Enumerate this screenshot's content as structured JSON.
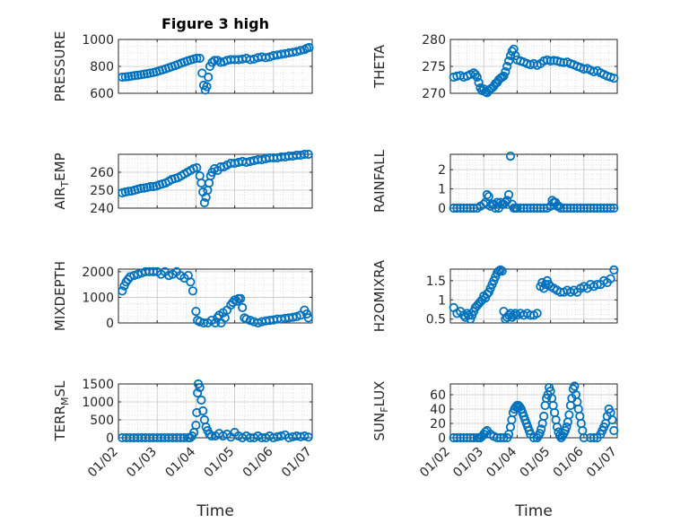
{
  "figure": {
    "title": "Figure 3 high",
    "marker_color": "#0072BD"
  },
  "chart_data": [
    {
      "type": "scatter",
      "title": "Figure 3 high",
      "ylabel": "PRESSURE",
      "xlabel": "",
      "xlim": [
        0,
        5
      ],
      "ylim": [
        600,
        1000
      ],
      "yticks": [
        600,
        800,
        1000
      ],
      "x": [
        0.1,
        0.18,
        0.26,
        0.34,
        0.42,
        0.5,
        0.58,
        0.66,
        0.74,
        0.82,
        0.9,
        0.98,
        1.06,
        1.14,
        1.22,
        1.3,
        1.38,
        1.46,
        1.54,
        1.62,
        1.7,
        1.78,
        1.86,
        1.94,
        2.02,
        2.1,
        2.16,
        2.2,
        2.24,
        2.28,
        2.32,
        2.36,
        2.42,
        2.48,
        2.56,
        2.64,
        2.72,
        2.8,
        2.9,
        3.0,
        3.1,
        3.2,
        3.3,
        3.4,
        3.5,
        3.6,
        3.7,
        3.8,
        3.9,
        4.0,
        4.1,
        4.2,
        4.3,
        4.4,
        4.5,
        4.6,
        4.7,
        4.8,
        4.86,
        4.92
      ],
      "values": [
        720,
        722,
        724,
        728,
        732,
        735,
        738,
        742,
        746,
        750,
        755,
        760,
        768,
        775,
        782,
        790,
        798,
        806,
        815,
        824,
        832,
        840,
        848,
        855,
        860,
        860,
        750,
        660,
        625,
        650,
        720,
        800,
        830,
        845,
        845,
        830,
        835,
        845,
        850,
        850,
        850,
        855,
        860,
        850,
        855,
        865,
        870,
        865,
        870,
        880,
        885,
        890,
        895,
        900,
        905,
        910,
        918,
        925,
        935,
        940
      ]
    },
    {
      "type": "scatter",
      "ylabel": "THETA",
      "xlabel": "",
      "xlim": [
        0,
        5
      ],
      "ylim": [
        270,
        280
      ],
      "yticks": [
        270,
        275,
        280
      ],
      "x": [
        0.1,
        0.2,
        0.3,
        0.4,
        0.5,
        0.6,
        0.7,
        0.75,
        0.8,
        0.85,
        0.9,
        0.95,
        1.0,
        1.05,
        1.1,
        1.15,
        1.2,
        1.25,
        1.3,
        1.35,
        1.4,
        1.45,
        1.5,
        1.55,
        1.6,
        1.65,
        1.7,
        1.75,
        1.8,
        1.85,
        1.9,
        1.95,
        2.0,
        2.1,
        2.2,
        2.3,
        2.4,
        2.5,
        2.6,
        2.7,
        2.8,
        2.9,
        3.0,
        3.1,
        3.2,
        3.3,
        3.4,
        3.5,
        3.6,
        3.7,
        3.8,
        3.9,
        4.0,
        4.1,
        4.2,
        4.3,
        4.4,
        4.5,
        4.6,
        4.7,
        4.8,
        4.9
      ],
      "values": [
        273.0,
        273.2,
        273.3,
        273.0,
        273.2,
        273.5,
        273.8,
        273.5,
        273.0,
        272.0,
        271.0,
        270.5,
        270.8,
        270.3,
        270.1,
        270.5,
        270.8,
        271.0,
        271.3,
        271.8,
        272.0,
        272.5,
        272.8,
        273.0,
        273.2,
        274.0,
        275.0,
        276.0,
        277.0,
        277.8,
        278.2,
        277.0,
        276.2,
        276.0,
        275.8,
        275.5,
        275.3,
        275.5,
        275.2,
        275.5,
        276.0,
        276.2,
        276.0,
        276.1,
        276.0,
        275.8,
        275.7,
        275.8,
        275.5,
        275.3,
        275.0,
        274.8,
        274.5,
        274.6,
        274.3,
        274.0,
        274.2,
        273.8,
        273.5,
        273.2,
        273.0,
        272.8
      ]
    },
    {
      "type": "scatter",
      "ylabel": "AIR_TEMP",
      "xlabel": "",
      "xlim": [
        0,
        5
      ],
      "ylim": [
        240,
        270
      ],
      "yticks": [
        240,
        250,
        260
      ],
      "x": [
        0.1,
        0.18,
        0.26,
        0.34,
        0.42,
        0.5,
        0.58,
        0.66,
        0.74,
        0.82,
        0.9,
        0.98,
        1.06,
        1.14,
        1.22,
        1.3,
        1.38,
        1.46,
        1.54,
        1.62,
        1.7,
        1.78,
        1.86,
        1.94,
        2.02,
        2.1,
        2.14,
        2.18,
        2.22,
        2.26,
        2.3,
        2.34,
        2.38,
        2.42,
        2.48,
        2.56,
        2.64,
        2.72,
        2.8,
        2.9,
        3.0,
        3.1,
        3.2,
        3.3,
        3.4,
        3.5,
        3.6,
        3.7,
        3.8,
        3.9,
        4.0,
        4.1,
        4.2,
        4.3,
        4.4,
        4.5,
        4.6,
        4.7,
        4.8,
        4.9
      ],
      "values": [
        248.5,
        249,
        249.3,
        249.5,
        250,
        250.5,
        251,
        251.2,
        251.5,
        252,
        252,
        252.3,
        253,
        253.5,
        254,
        255,
        256,
        256.5,
        257,
        258,
        259,
        260,
        261,
        262,
        262.5,
        258,
        254,
        249,
        243,
        246,
        250,
        254,
        258,
        260,
        262,
        261,
        263,
        263,
        264,
        265,
        265,
        265.5,
        266,
        265.5,
        266,
        266.5,
        267,
        267,
        267.5,
        268,
        268,
        268,
        268.5,
        268.5,
        269,
        269,
        269.5,
        269.5,
        270,
        270
      ]
    },
    {
      "type": "scatter",
      "ylabel": "RAINFALL",
      "xlabel": "",
      "xlim": [
        0,
        5
      ],
      "ylim": [
        0,
        2.8
      ],
      "yticks": [
        0,
        1,
        2
      ],
      "x": [
        0.1,
        0.2,
        0.3,
        0.4,
        0.5,
        0.6,
        0.7,
        0.8,
        0.9,
        1.0,
        1.05,
        1.1,
        1.15,
        1.2,
        1.25,
        1.3,
        1.35,
        1.4,
        1.45,
        1.5,
        1.55,
        1.6,
        1.65,
        1.7,
        1.75,
        1.8,
        1.85,
        1.9,
        1.95,
        2.0,
        2.1,
        2.2,
        2.3,
        2.4,
        2.5,
        2.6,
        2.7,
        2.8,
        2.9,
        3.0,
        3.05,
        3.1,
        3.15,
        3.2,
        3.25,
        3.3,
        3.4,
        3.5,
        3.6,
        3.7,
        3.8,
        3.9,
        4.0,
        4.1,
        4.2,
        4.3,
        4.4,
        4.5,
        4.6,
        4.7,
        4.8,
        4.9
      ],
      "values": [
        0,
        0,
        0,
        0,
        0,
        0,
        0,
        0,
        0.1,
        0.2,
        0.3,
        0.7,
        0.6,
        0.1,
        0.2,
        0.2,
        0,
        0.3,
        0,
        0.3,
        0.2,
        0.2,
        0.3,
        0.4,
        0.7,
        2.7,
        0.2,
        0,
        0,
        0,
        0,
        0,
        0,
        0,
        0,
        0,
        0,
        0,
        0,
        0.1,
        0.4,
        0.3,
        0.3,
        0.1,
        0.1,
        0,
        0,
        0,
        0,
        0,
        0,
        0,
        0,
        0,
        0,
        0,
        0,
        0,
        0,
        0,
        0,
        0
      ]
    },
    {
      "type": "scatter",
      "ylabel": "MIXDEPTH",
      "xlabel": "",
      "xlim": [
        0,
        5
      ],
      "ylim": [
        0,
        2100
      ],
      "yticks": [
        0,
        1000,
        2000
      ],
      "x": [
        0.1,
        0.15,
        0.2,
        0.25,
        0.3,
        0.4,
        0.5,
        0.6,
        0.7,
        0.8,
        0.9,
        1.0,
        1.1,
        1.2,
        1.3,
        1.4,
        1.5,
        1.6,
        1.7,
        1.8,
        1.86,
        1.92,
        2.0,
        2.04,
        2.1,
        2.2,
        2.3,
        2.4,
        2.5,
        2.55,
        2.6,
        2.65,
        2.7,
        2.75,
        2.8,
        2.9,
        2.95,
        3.0,
        3.05,
        3.1,
        3.15,
        3.2,
        3.25,
        3.3,
        3.4,
        3.5,
        3.6,
        3.7,
        3.8,
        3.9,
        4.0,
        4.1,
        4.2,
        4.3,
        4.4,
        4.5,
        4.6,
        4.7,
        4.8,
        4.86,
        4.9
      ],
      "values": [
        1250,
        1450,
        1600,
        1700,
        1800,
        1850,
        1900,
        1950,
        2000,
        2000,
        2000,
        2000,
        1900,
        2000,
        1850,
        1900,
        2000,
        1850,
        1750,
        1850,
        1600,
        1250,
        450,
        100,
        50,
        0,
        0,
        100,
        0,
        200,
        300,
        0,
        400,
        200,
        500,
        700,
        800,
        900,
        850,
        950,
        950,
        600,
        200,
        150,
        100,
        50,
        0,
        50,
        80,
        100,
        120,
        150,
        150,
        180,
        200,
        220,
        250,
        300,
        500,
        350,
        200
      ]
    },
    {
      "type": "scatter",
      "ylabel": "H2OMIXRA",
      "xlabel": "",
      "xlim": [
        0,
        5
      ],
      "ylim": [
        0.4,
        1.8
      ],
      "yticks": [
        0.5,
        1,
        1.5
      ],
      "x": [
        0.1,
        0.2,
        0.3,
        0.4,
        0.45,
        0.5,
        0.55,
        0.6,
        0.65,
        0.7,
        0.75,
        0.8,
        0.85,
        0.9,
        0.95,
        1.0,
        1.05,
        1.1,
        1.15,
        1.2,
        1.25,
        1.3,
        1.35,
        1.4,
        1.45,
        1.5,
        1.55,
        1.6,
        1.65,
        1.7,
        1.75,
        1.8,
        1.85,
        1.9,
        1.95,
        2.0,
        2.1,
        2.2,
        2.3,
        2.4,
        2.5,
        2.6,
        2.7,
        2.75,
        2.8,
        2.85,
        2.9,
        2.95,
        3.0,
        3.1,
        3.2,
        3.3,
        3.4,
        3.5,
        3.6,
        3.7,
        3.8,
        3.9,
        4.0,
        4.1,
        4.2,
        4.3,
        4.4,
        4.5,
        4.6,
        4.7,
        4.8,
        4.9
      ],
      "values": [
        0.8,
        0.65,
        0.7,
        0.6,
        0.55,
        0.65,
        0.6,
        0.5,
        0.6,
        0.7,
        0.8,
        0.85,
        0.9,
        0.95,
        1.0,
        1.1,
        1.05,
        1.15,
        1.2,
        1.3,
        1.4,
        1.5,
        1.6,
        1.7,
        1.75,
        1.78,
        1.75,
        0.7,
        0.5,
        0.55,
        0.6,
        0.65,
        0.55,
        0.6,
        0.65,
        0.6,
        0.65,
        0.6,
        0.65,
        0.6,
        0.6,
        0.65,
        1.35,
        1.45,
        1.3,
        1.4,
        1.5,
        1.4,
        1.35,
        1.3,
        1.25,
        1.2,
        1.2,
        1.25,
        1.2,
        1.25,
        1.2,
        1.3,
        1.35,
        1.3,
        1.4,
        1.35,
        1.4,
        1.4,
        1.5,
        1.45,
        1.55,
        1.78
      ]
    },
    {
      "type": "scatter",
      "ylabel": "TERR_MSL",
      "xlabel": "Time",
      "xlim": [
        0,
        5
      ],
      "ylim": [
        0,
        1500
      ],
      "yticks": [
        0,
        500,
        1000,
        1500
      ],
      "xticklabels": [
        "01/02",
        "01/03",
        "01/04",
        "01/05",
        "01/06",
        "01/07"
      ],
      "x": [
        0.1,
        0.2,
        0.3,
        0.4,
        0.5,
        0.6,
        0.7,
        0.8,
        0.9,
        1.0,
        1.1,
        1.2,
        1.3,
        1.4,
        1.5,
        1.6,
        1.7,
        1.8,
        1.85,
        1.9,
        1.95,
        2.0,
        2.02,
        2.04,
        2.06,
        2.1,
        2.14,
        2.18,
        2.22,
        2.26,
        2.3,
        2.35,
        2.4,
        2.5,
        2.6,
        2.7,
        2.8,
        2.9,
        3.0,
        3.1,
        3.2,
        3.3,
        3.4,
        3.5,
        3.6,
        3.7,
        3.8,
        3.9,
        4.0,
        4.1,
        4.2,
        4.3,
        4.4,
        4.5,
        4.6,
        4.7,
        4.8,
        4.9
      ],
      "values": [
        0,
        0,
        0,
        0,
        0,
        0,
        0,
        0,
        0,
        0,
        0,
        0,
        0,
        0,
        0,
        0,
        0,
        0,
        0,
        50,
        150,
        350,
        700,
        1250,
        1500,
        1400,
        1050,
        750,
        500,
        300,
        200,
        100,
        50,
        50,
        120,
        50,
        100,
        20,
        150,
        50,
        0,
        50,
        0,
        0,
        50,
        0,
        0,
        50,
        0,
        30,
        50,
        80,
        0,
        30,
        50,
        30,
        50,
        20
      ]
    },
    {
      "type": "scatter",
      "ylabel": "SUN_FLUX",
      "xlabel": "Time",
      "xlim": [
        0,
        5
      ],
      "ylim": [
        0,
        75
      ],
      "yticks": [
        0,
        20,
        40,
        60
      ],
      "xticklabels": [
        "01/02",
        "01/03",
        "01/04",
        "01/05",
        "01/06",
        "01/07"
      ],
      "x": [
        0.1,
        0.2,
        0.3,
        0.4,
        0.5,
        0.6,
        0.7,
        0.8,
        0.85,
        0.9,
        0.95,
        1.0,
        1.05,
        1.1,
        1.2,
        1.3,
        1.4,
        1.5,
        1.6,
        1.7,
        1.75,
        1.8,
        1.84,
        1.88,
        1.92,
        1.96,
        2.0,
        2.04,
        2.08,
        2.12,
        2.16,
        2.2,
        2.24,
        2.28,
        2.32,
        2.36,
        2.4,
        2.5,
        2.6,
        2.64,
        2.68,
        2.72,
        2.76,
        2.8,
        2.84,
        2.88,
        2.92,
        2.96,
        3.0,
        3.04,
        3.08,
        3.12,
        3.16,
        3.2,
        3.24,
        3.28,
        3.32,
        3.36,
        3.4,
        3.44,
        3.48,
        3.52,
        3.56,
        3.6,
        3.64,
        3.68,
        3.72,
        3.76,
        3.8,
        3.84,
        3.88,
        3.92,
        3.96,
        4.0,
        4.2,
        4.3,
        4.4,
        4.5,
        4.55,
        4.6,
        4.65,
        4.7,
        4.75,
        4.8,
        4.85,
        4.9
      ],
      "values": [
        0,
        0,
        0,
        0,
        0,
        0,
        0,
        0,
        0,
        0,
        2,
        5,
        8,
        10,
        5,
        2,
        0,
        0,
        0,
        0,
        5,
        15,
        25,
        35,
        40,
        43,
        45,
        45,
        43,
        40,
        35,
        30,
        25,
        20,
        15,
        10,
        5,
        0,
        0,
        3,
        6,
        12,
        20,
        30,
        45,
        55,
        60,
        70,
        65,
        55,
        45,
        35,
        25,
        15,
        8,
        3,
        0,
        3,
        6,
        10,
        15,
        22,
        32,
        45,
        55,
        68,
        72,
        60,
        50,
        40,
        30,
        20,
        10,
        0,
        0,
        0,
        0,
        5,
        10,
        15,
        20,
        30,
        40,
        35,
        25,
        10
      ]
    }
  ]
}
